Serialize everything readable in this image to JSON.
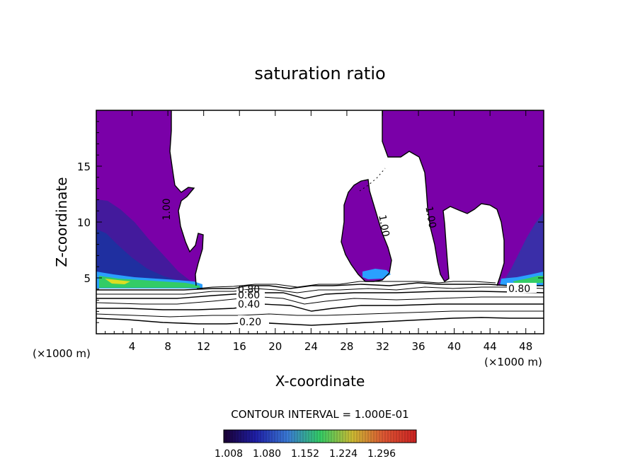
{
  "chart_data": {
    "type": "contour",
    "title": "saturation ratio",
    "xlabel": "X-coordinate",
    "ylabel": "Z-coordinate",
    "x_unit": "(×1000 m)",
    "z_unit": "(×1000 m)",
    "xlim": [
      0,
      50
    ],
    "ylim": [
      0,
      20
    ],
    "x_ticks": [
      4,
      8,
      12,
      16,
      20,
      24,
      28,
      32,
      36,
      40,
      44,
      48
    ],
    "y_ticks": [
      5,
      10,
      15
    ],
    "contour_interval_text": "CONTOUR INTERVAL = 1.000E-01",
    "contour_labels": [
      "0.20",
      "0.40",
      "0.60",
      "0.80",
      "0.80",
      "1.00",
      "1.00",
      "1.00"
    ],
    "colorbar": {
      "tick_labels": [
        "1.008",
        "1.080",
        "1.152",
        "1.224",
        "1.296"
      ],
      "colors": [
        "#1a0033",
        "#1f1fa8",
        "#3a7bd5",
        "#33cc66",
        "#ccbb33",
        "#dd5533",
        "#cc2222"
      ]
    },
    "fill_color_main": "#7a00a8",
    "supersaturated_band_colors": [
      "#2aa0ff",
      "#33cc66",
      "#dddd22"
    ]
  }
}
